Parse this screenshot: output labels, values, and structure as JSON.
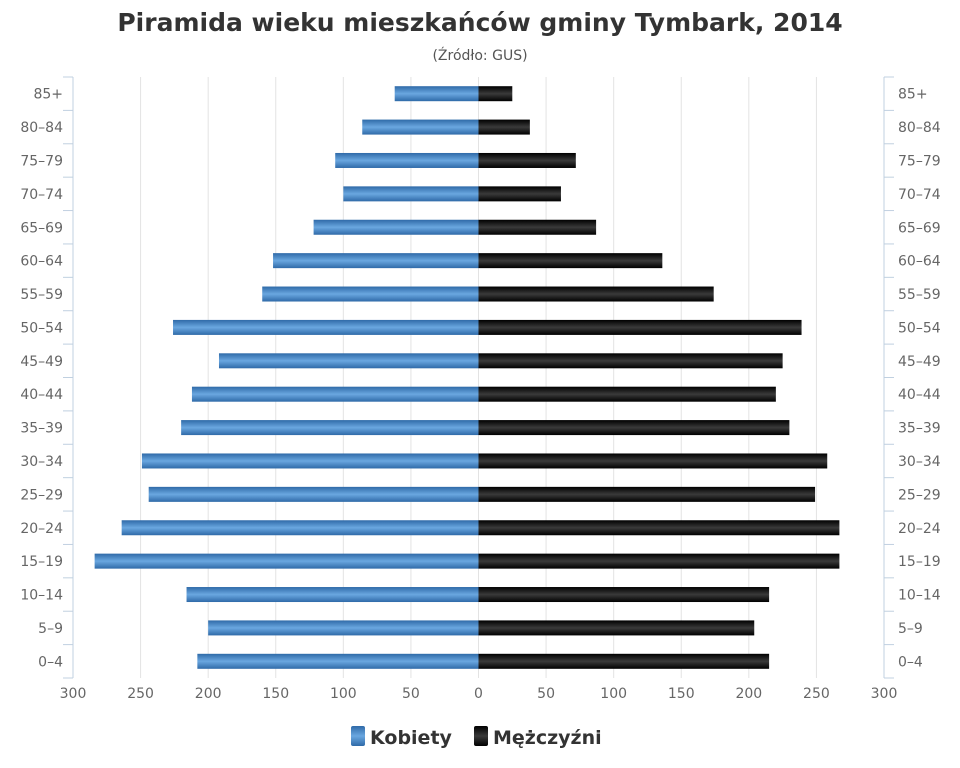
{
  "chart_data": {
    "type": "bar",
    "orientation": "horizontal-pyramid",
    "title": "Piramida wieku mieszkańców gminy Tymbark, 2014",
    "subtitle": "(Źródło: GUS)",
    "categories": [
      "85+",
      "80-84",
      "75-79",
      "70-74",
      "65-69",
      "60-64",
      "55-59",
      "50-54",
      "45-49",
      "40-44",
      "35-39",
      "30-34",
      "25-29",
      "20-24",
      "15-19",
      "10-14",
      "5-9",
      "0-4"
    ],
    "series": [
      {
        "name": "Kobiety",
        "side": "left",
        "color": "#4a86c5",
        "values": [
          62,
          86,
          106,
          100,
          122,
          152,
          160,
          226,
          192,
          212,
          220,
          249,
          244,
          264,
          284,
          216,
          200,
          208
        ]
      },
      {
        "name": "Mężczyźni",
        "side": "right",
        "color": "#1a1a1a",
        "values": [
          25,
          38,
          72,
          61,
          87,
          136,
          174,
          239,
          225,
          220,
          230,
          258,
          249,
          267,
          267,
          215,
          204,
          215
        ]
      }
    ],
    "x_ticks": [
      "300",
      "250",
      "200",
      "150",
      "100",
      "50",
      "0",
      "50",
      "100",
      "150",
      "200",
      "250",
      "300"
    ],
    "xlim": [
      -300,
      300
    ],
    "grid": true,
    "legend_position": "bottom-center"
  }
}
